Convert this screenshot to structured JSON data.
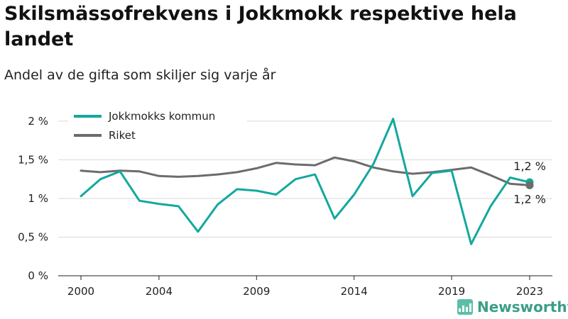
{
  "header": {
    "title": "Skilsmässofrekvens i Jokkmokk respektive hela landet",
    "subtitle": "Andel av de gifta som skiljer sig varje år"
  },
  "brand": {
    "name": "Newsworthy",
    "color": "#3a9e88",
    "icon": "newsworthy-bar-chart-icon"
  },
  "chart_data": {
    "type": "line",
    "x": [
      2000,
      2001,
      2002,
      2003,
      2004,
      2005,
      2006,
      2007,
      2008,
      2009,
      2010,
      2011,
      2012,
      2013,
      2014,
      2015,
      2016,
      2017,
      2018,
      2019,
      2020,
      2021,
      2022,
      2023
    ],
    "xticks": [
      2000,
      2004,
      2009,
      2014,
      2019,
      2023
    ],
    "xtick_labels": [
      "2000",
      "2004",
      "2009",
      "2014",
      "2019",
      "2023"
    ],
    "yticks": [
      0,
      0.5,
      1,
      1.5,
      2
    ],
    "ytick_labels": [
      "0 %",
      "0,5 %",
      "1 %",
      "1,5 %",
      "2 %"
    ],
    "ylim": [
      0,
      2.1
    ],
    "xlim": [
      2000,
      2023
    ],
    "grid": "horizontal",
    "legend_position": "top-left",
    "series": [
      {
        "name": "Jokkmokks kommun",
        "color": "#13a89e",
        "values": [
          1.03,
          1.25,
          1.35,
          0.97,
          0.93,
          0.9,
          0.57,
          0.92,
          1.12,
          1.1,
          1.05,
          1.25,
          1.31,
          0.74,
          1.05,
          1.45,
          2.03,
          1.03,
          1.33,
          1.36,
          0.41,
          0.9,
          1.27,
          1.21
        ],
        "end_label": "1,2 %"
      },
      {
        "name": "Riket",
        "color": "#6e6b6b",
        "values": [
          1.36,
          1.34,
          1.36,
          1.35,
          1.29,
          1.28,
          1.29,
          1.31,
          1.34,
          1.39,
          1.46,
          1.44,
          1.43,
          1.53,
          1.48,
          1.4,
          1.35,
          1.32,
          1.34,
          1.37,
          1.4,
          1.3,
          1.19,
          1.17
        ],
        "end_label": "1,2 %"
      }
    ]
  }
}
